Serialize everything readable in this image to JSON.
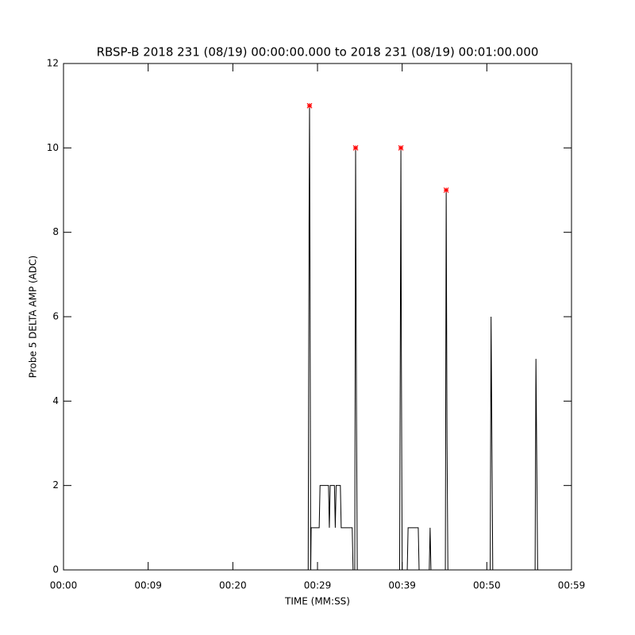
{
  "chart_data": {
    "type": "line",
    "title": "RBSP-B 2018 231 (08/19) 00:00:00.000 to 2018 231 (08/19) 00:01:00.000",
    "x_label": "TIME (MM:SS)",
    "y_label": "Probe 5 DELTA AMP (ADC)",
    "xlim": [
      0,
      60
    ],
    "ylim": [
      0,
      12
    ],
    "xticks": [
      {
        "value": 0,
        "label": "00:00"
      },
      {
        "value": 10,
        "label": "00:09"
      },
      {
        "value": 20,
        "label": "00:20"
      },
      {
        "value": 30,
        "label": "00:29"
      },
      {
        "value": 40,
        "label": "00:39"
      },
      {
        "value": 50,
        "label": "00:50"
      },
      {
        "value": 60,
        "label": "00:59"
      }
    ],
    "yticks": [
      0,
      2,
      4,
      6,
      8,
      10,
      12
    ],
    "series": [
      {
        "color": "#000000",
        "x": [
          0,
          28.9,
          29.0,
          29.06,
          29.12,
          29.2,
          29.25,
          30.2,
          30.3,
          31.3,
          31.4,
          31.5,
          32.0,
          32.1,
          32.2,
          32.7,
          32.8,
          34.1,
          34.2,
          34.4,
          34.5,
          34.6,
          34.7,
          39.7,
          39.85,
          39.9,
          40.0,
          40.6,
          40.7,
          41.9,
          42.0,
          43.2,
          43.3,
          43.4,
          45.1,
          45.2,
          45.3,
          45.4,
          50.4,
          50.5,
          50.6,
          50.7,
          55.7,
          55.8,
          55.9,
          56.0
        ],
        "values": [
          0,
          0,
          8,
          11,
          6.5,
          0,
          1,
          1,
          2,
          2,
          1,
          2,
          2,
          1,
          2,
          2,
          1,
          1,
          0,
          0,
          10,
          4,
          0,
          0,
          10,
          5.5,
          0,
          0,
          1,
          1,
          0,
          0,
          1,
          0,
          0,
          9,
          3,
          0,
          0,
          6,
          3,
          0,
          0,
          5,
          2.5,
          0
        ]
      },
      {
        "color": "#ff0000",
        "marker": "asterisk",
        "x": [
          29.06,
          34.5,
          39.85,
          45.2
        ],
        "values": [
          11,
          10,
          10,
          9
        ]
      }
    ]
  }
}
